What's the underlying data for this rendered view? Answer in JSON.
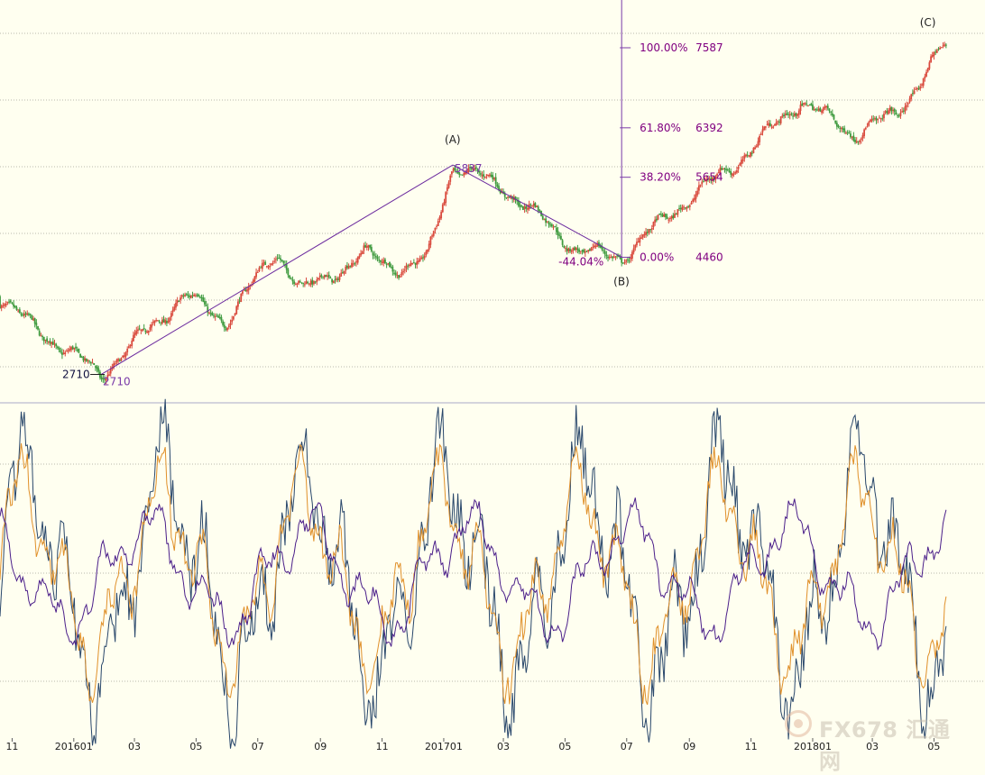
{
  "chart_data": [
    {
      "type": "candlestick",
      "panel": "price",
      "ylim": [
        2300,
        8300
      ],
      "colors": {
        "up": "#d94a3d",
        "down": "#3e9a3e",
        "grid": "#b9b9ac",
        "trend": "#6b2a9e",
        "fib_axis": "#7a3aa8"
      },
      "grid": true,
      "points": [
        {
          "date": "2015-10-10",
          "value": 4000
        },
        {
          "date": "2015-11-15",
          "value": 3500
        },
        {
          "date": "2016-01-28",
          "value": 2710,
          "label": "2710"
        },
        {
          "date": "2016-04-20",
          "value": 3900
        },
        {
          "date": "2016-05-30",
          "value": 3500
        },
        {
          "date": "2016-07-20",
          "value": 4550
        },
        {
          "date": "2016-08-15",
          "value": 3950
        },
        {
          "date": "2016-10-15",
          "value": 4500
        },
        {
          "date": "2016-11-20",
          "value": 4300
        },
        {
          "date": "2016-12-15",
          "value": 4400
        },
        {
          "date": "2017-01-10",
          "value": 5837,
          "label": "5837"
        },
        {
          "date": "2017-03-01",
          "value": 5500
        },
        {
          "date": "2017-04-10",
          "value": 5000
        },
        {
          "date": "2017-05-15",
          "value": 4550
        },
        {
          "date": "2017-06-26",
          "value": 4460
        },
        {
          "date": "2017-08-20",
          "value": 5200
        },
        {
          "date": "2017-10-20",
          "value": 5900
        },
        {
          "date": "2017-12-20",
          "value": 6800
        },
        {
          "date": "2018-02-10",
          "value": 6300
        },
        {
          "date": "2018-03-25",
          "value": 6600
        },
        {
          "date": "2018-05-10",
          "value": 7587
        }
      ],
      "wave_labels": [
        {
          "text": "(A)",
          "date": "2017-01-10",
          "value": 5837
        },
        {
          "text": "(B)",
          "date": "2017-06-26",
          "value": 4460
        },
        {
          "text": "(C)",
          "date": "2018-04-25",
          "value": 7587
        }
      ],
      "swing_labels": [
        {
          "text": "2710",
          "side": "left"
        },
        {
          "text": "2710",
          "side": "right"
        },
        {
          "text": "5837"
        }
      ],
      "retracement_label": "-44.04%",
      "fib_levels": [
        {
          "pct": "100.00%",
          "value": 7587
        },
        {
          "pct": "61.80%",
          "value": 6392
        },
        {
          "pct": "38.20%",
          "value": 5654
        },
        {
          "pct": "0.00%",
          "value": 4460
        }
      ],
      "x_ticks": [
        "11",
        "201601",
        "03",
        "05",
        "07",
        "09",
        "11",
        "201701",
        "03",
        "05",
        "07",
        "09",
        "11",
        "201801",
        "03",
        "05"
      ]
    },
    {
      "type": "line",
      "panel": "oscillator",
      "ylim": [
        -1,
        1
      ],
      "colors": {
        "fast": "#29476b",
        "medium": "#e0902a",
        "slow": "#4b1f8a"
      },
      "series": [
        {
          "key": "fast",
          "style": "navy"
        },
        {
          "key": "medium",
          "style": "orange"
        },
        {
          "key": "slow",
          "style": "purple"
        }
      ]
    }
  ],
  "watermark": {
    "text": "FX678 汇通网",
    "icon": "fx678-logo-icon"
  }
}
